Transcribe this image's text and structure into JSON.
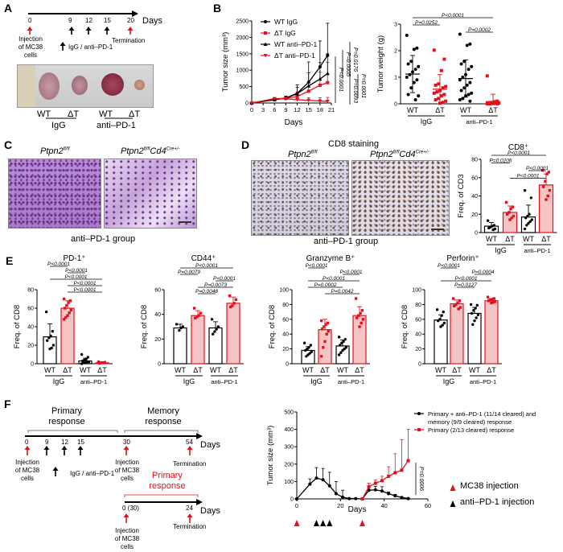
{
  "panel_labels": [
    "A",
    "B",
    "C",
    "D",
    "E",
    "F"
  ],
  "colors": {
    "wt": "#000000",
    "dt": "#e3111b",
    "dt_fill": "#f5c4c4"
  },
  "a": {
    "days": [
      "0",
      "9",
      "12",
      "15",
      "20"
    ],
    "days_label": "Days",
    "injection": "Injection\nof MC38\ncells",
    "termination": "Termination",
    "treatment": "IgG / anti–PD-1",
    "photo_labels": [
      "WT",
      "ΔT",
      "WT",
      "ΔT"
    ],
    "groups": [
      "IgG",
      "anti–PD-1"
    ]
  },
  "c": {
    "title1": {
      "base": "Ptpn2",
      "sup": "fl/fl"
    },
    "title2": {
      "base": "Ptpn2",
      "sup": "fl/fl",
      "base2": "Cd4",
      "sup2": "Cre+/-"
    },
    "caption": "anti–PD-1 group"
  },
  "d": {
    "heading": "CD8 staining",
    "title1": {
      "base": "Ptpn2",
      "sup": "fl/fl"
    },
    "title2": {
      "base": "Ptpn2",
      "sup": "fl/fl",
      "base2": "Cd4",
      "sup2": "Cre+/-"
    },
    "caption": "anti–PD-1 group"
  },
  "f": {
    "primary_response": "Primary\nresponse",
    "memory_response": "Memory\nresponse",
    "days": [
      "0",
      "9",
      "12",
      "15",
      "30",
      "54"
    ],
    "days2": [
      "0 (30)",
      "24"
    ],
    "days_label": "Days",
    "injection": "Injection\nof MC38\ncells",
    "termination": "Termination",
    "treatment": "IgG / anti–PD-1",
    "primary_response_red": "Primary\nresponse",
    "legend_red": "MC38 injection",
    "legend_black": "anti–PD-1 injection"
  },
  "chart_data": [
    {
      "id": "B_growth",
      "type": "line",
      "xlabel": "Days",
      "ylabel": "Tumor size (mm³)",
      "xlim": [
        0,
        21
      ],
      "ylim": [
        0,
        2500
      ],
      "xticks": [
        0,
        3,
        6,
        9,
        12,
        15,
        18,
        21
      ],
      "yticks": [
        0,
        500,
        1000,
        1500,
        2000,
        2500
      ],
      "legend": "top-left",
      "series": [
        {
          "name": "WT IgG",
          "color": "#000000",
          "marker": "circle",
          "x": [
            0,
            6,
            9,
            12,
            15,
            18,
            20
          ],
          "values": [
            0,
            100,
            150,
            300,
            630,
            1100,
            1450
          ],
          "sd": [
            0,
            40,
            60,
            250,
            620,
            790,
            980
          ]
        },
        {
          "name": "ΔT IgG",
          "color": "#e3111b",
          "marker": "square",
          "x": [
            0,
            6,
            9,
            12,
            15,
            18,
            20
          ],
          "values": [
            0,
            130,
            140,
            200,
            360,
            540,
            620
          ],
          "sd": [
            0,
            30,
            50,
            120,
            250,
            400,
            620
          ]
        },
        {
          "name": "WT anti–PD-1",
          "color": "#000000",
          "marker": "triangle",
          "x": [
            0,
            6,
            9,
            12,
            15,
            18,
            20
          ],
          "values": [
            0,
            100,
            150,
            280,
            520,
            730,
            900
          ],
          "sd": [
            0,
            40,
            60,
            200,
            400,
            500,
            600
          ]
        },
        {
          "name": "ΔT anti–PD-1",
          "color": "#e3111b",
          "marker": "down-triangle",
          "x": [
            0,
            6,
            9,
            12,
            15,
            18,
            20
          ],
          "values": [
            0,
            130,
            130,
            100,
            80,
            60,
            50
          ],
          "sd": [
            0,
            30,
            40,
            60,
            80,
            100,
            120
          ]
        }
      ],
      "pvalues": [
        "P=0.0176",
        "P=0.0005",
        "P<0.0001",
        "P=0.0093",
        "P=0.0001"
      ]
    },
    {
      "id": "B_weight",
      "type": "scatter",
      "ylabel": "Tumor weight (g)",
      "ylim": [
        0,
        3
      ],
      "yticks": [
        0,
        1,
        2,
        3
      ],
      "categories": [
        "WT",
        "ΔT",
        "WT",
        "ΔT"
      ],
      "groups": [
        "IgG",
        "anti–PD-1"
      ],
      "means": [
        1.12,
        0.55,
        0.95,
        0.08
      ],
      "sd": [
        0.7,
        0.55,
        0.7,
        0.28
      ],
      "points": [
        [
          2.58,
          2.1,
          2.05,
          1.6,
          1.5,
          1.4,
          1.3,
          1.2,
          1.1,
          1.0,
          0.9,
          0.8,
          0.6,
          0.35,
          0.3,
          0.15
        ],
        [
          2.02,
          1.68,
          1.25,
          0.75,
          0.7,
          0.65,
          0.6,
          0.5,
          0.45,
          0.4,
          0.35,
          0.3,
          0.2,
          0.15,
          0.1,
          0.05,
          0.02
        ],
        [
          2.62,
          2.25,
          2.2,
          1.6,
          1.5,
          1.4,
          1.3,
          1.1,
          1.0,
          0.9,
          0.8,
          0.7,
          0.6,
          0.5,
          0.4,
          0.35,
          0.3,
          0.2,
          0.15,
          0.1
        ],
        [
          1.05,
          0.1,
          0.08,
          0.05,
          0.04,
          0.03,
          0.02,
          0.01,
          0,
          0,
          0
        ]
      ],
      "brackets": [
        {
          "text": "P<0.0001",
          "pair": [
            0,
            3
          ]
        },
        {
          "text": "P=0.0252",
          "pair": [
            0,
            1
          ]
        },
        {
          "text": "P=0.0002",
          "pair": [
            2,
            3
          ]
        }
      ]
    },
    {
      "id": "D_cd8",
      "type": "bar",
      "title": "CD8⁺",
      "ylabel": "Freq. of CD3",
      "ylim": [
        0,
        80
      ],
      "yticks": [
        0,
        20,
        40,
        60,
        80
      ],
      "categories": [
        "WT",
        "ΔT",
        "WT",
        "ΔT"
      ],
      "groups": [
        "IgG",
        "anti–PD-1"
      ],
      "means": [
        7,
        22,
        17,
        52
      ],
      "sd": [
        4,
        7,
        13,
        12
      ],
      "points": [
        [
          13,
          8,
          7,
          6,
          5,
          4,
          3
        ],
        [
          33,
          28,
          26,
          22,
          20,
          18,
          16,
          14
        ],
        [
          46,
          38,
          20,
          18,
          16,
          14,
          12,
          10,
          8,
          4
        ],
        [
          68,
          66,
          64,
          56,
          50,
          46,
          40,
          36
        ]
      ],
      "brackets": [
        {
          "text": "P<0.0001",
          "pair": [
            0,
            3
          ]
        },
        {
          "text": "P=0.0206",
          "pair": [
            0,
            1
          ]
        },
        {
          "text": "P<0.0001",
          "pair": [
            2,
            3
          ]
        },
        {
          "text": "P<0.0001",
          "pair": [
            1,
            3
          ]
        }
      ]
    },
    {
      "id": "E_pd1",
      "type": "bar",
      "title": "PD-1⁺",
      "ylabel": "Freq. of CD8",
      "ylim": [
        0,
        80
      ],
      "yticks": [
        0,
        20,
        40,
        60,
        80
      ],
      "categories": [
        "WT",
        "ΔT",
        "WT",
        "ΔT"
      ],
      "groups": [
        "IgG",
        "anti–PD-1"
      ],
      "means": [
        29,
        60,
        3,
        1
      ],
      "sd": [
        14,
        8,
        3,
        1
      ],
      "points": [
        [
          56,
          35,
          30,
          28,
          25,
          20,
          17,
          16
        ],
        [
          70,
          68,
          66,
          63,
          60,
          58,
          55,
          52,
          50,
          48
        ],
        [
          10,
          7,
          5,
          4,
          3,
          2,
          2,
          1,
          1,
          0
        ],
        [
          2,
          1.5,
          1,
          1,
          0.5
        ]
      ],
      "brackets": [
        {
          "text": "P<0.0001",
          "pair": [
            0,
            1
          ]
        },
        {
          "text": "P<0.0001",
          "pair": [
            1,
            2
          ]
        },
        {
          "text": "P<0.0001",
          "pair": [
            0,
            3
          ]
        },
        {
          "text": "P<0.0001",
          "pair": [
            1,
            3
          ]
        },
        {
          "text": "P<0.0001",
          "pair": [
            1,
            3
          ]
        }
      ]
    },
    {
      "id": "E_cd44",
      "type": "bar",
      "title": "CD44⁺",
      "ylabel": "Freq. of CD8",
      "ylim": [
        0,
        60
      ],
      "yticks": [
        0,
        20,
        40,
        60
      ],
      "categories": [
        "WT",
        "ΔT",
        "WT",
        "ΔT"
      ],
      "groups": [
        "IgG",
        "anti–PD-1"
      ],
      "means": [
        29,
        39,
        29,
        49
      ],
      "sd": [
        3,
        4,
        5,
        5
      ],
      "points": [
        [
          32,
          30,
          29,
          27
        ],
        [
          45,
          41,
          39,
          38,
          37
        ],
        [
          36,
          30,
          28,
          26,
          24
        ],
        [
          55,
          52,
          49,
          47,
          46
        ]
      ],
      "brackets": [
        {
          "text": "P<0.0001",
          "pair": [
            0,
            3
          ]
        },
        {
          "text": "P=0.0079",
          "pair": [
            0,
            1
          ]
        },
        {
          "text": "P<0.0001",
          "pair": [
            2,
            3
          ]
        },
        {
          "text": "P=0.0073",
          "pair": [
            1,
            3
          ]
        },
        {
          "text": "P=0.0048",
          "pair": [
            1,
            2
          ]
        }
      ]
    },
    {
      "id": "E_gzmb",
      "type": "bar",
      "title": "Granzyme B⁺",
      "ylabel": "Freq. of CD8",
      "ylim": [
        0,
        100
      ],
      "yticks": [
        0,
        20,
        40,
        60,
        80,
        100
      ],
      "categories": [
        "WT",
        "ΔT",
        "WT",
        "ΔT"
      ],
      "groups": [
        "IgG",
        "anti–PD-1"
      ],
      "means": [
        18,
        46,
        24,
        65
      ],
      "sd": [
        5,
        14,
        8,
        12
      ],
      "points": [
        [
          28,
          25,
          22,
          20,
          18,
          16,
          14,
          12,
          10
        ],
        [
          58,
          55,
          53,
          50,
          47,
          44,
          40,
          30,
          22,
          10
        ],
        [
          36,
          33,
          30,
          28,
          25,
          22,
          20,
          18,
          15,
          12
        ],
        [
          88,
          72,
          68,
          65,
          62,
          60,
          55,
          50
        ]
      ],
      "brackets": [
        {
          "text": "P<0.0001",
          "pair": [
            0,
            1
          ]
        },
        {
          "text": "P<0.0001",
          "pair": [
            2,
            3
          ]
        },
        {
          "text": "P<0.0001",
          "pair": [
            0,
            3
          ]
        },
        {
          "text": "P=0.0002",
          "pair": [
            0,
            2
          ]
        },
        {
          "text": "P=0.0042",
          "pair": [
            1,
            3
          ]
        }
      ]
    },
    {
      "id": "E_perforin",
      "type": "bar",
      "title": "Perforin⁺",
      "ylabel": "Freq. of CD8",
      "ylim": [
        0,
        100
      ],
      "yticks": [
        0,
        20,
        40,
        60,
        80,
        100
      ],
      "categories": [
        "WT",
        "ΔT",
        "WT",
        "ΔT"
      ],
      "groups": [
        "IgG",
        "anti–PD-1"
      ],
      "means": [
        59,
        81,
        68,
        85
      ],
      "sd": [
        7,
        5,
        8,
        3
      ],
      "points": [
        [
          73,
          70,
          65,
          60,
          58,
          55,
          52,
          50
        ],
        [
          88,
          85,
          82,
          80,
          78,
          76,
          74
        ],
        [
          80,
          79,
          75,
          72,
          68,
          66,
          62,
          58,
          53
        ],
        [
          90,
          88,
          87,
          86,
          85,
          84,
          83,
          82
        ]
      ],
      "brackets": [
        {
          "text": "P<0.0001",
          "pair": [
            0,
            1
          ]
        },
        {
          "text": "P=0.0004",
          "pair": [
            2,
            3
          ]
        },
        {
          "text": "P<0.0001",
          "pair": [
            0,
            3
          ]
        },
        {
          "text": "P=0.0127",
          "pair": [
            1,
            2
          ]
        }
      ]
    },
    {
      "id": "F_growth",
      "type": "line",
      "xlabel": "Days",
      "ylabel": "Tumor size (mm³)",
      "xlim": [
        0,
        60
      ],
      "ylim": [
        0,
        500
      ],
      "xticks": [
        0,
        20,
        40,
        60
      ],
      "yticks": [
        0,
        100,
        200,
        300,
        400,
        500
      ],
      "legend": "top-right",
      "series": [
        {
          "name": "Primary + anti–PD-1 (11/14 cleared) and\nmemory (9/9 cleared) response",
          "color": "#000000",
          "marker": "circle",
          "x": [
            0,
            6,
            9,
            12,
            15,
            18,
            21,
            24,
            27,
            30,
            33,
            36,
            39,
            42,
            45,
            48,
            51
          ],
          "values": [
            0,
            85,
            120,
            110,
            75,
            30,
            10,
            2,
            2,
            0,
            50,
            52,
            45,
            30,
            18,
            8,
            2
          ],
          "sd": [
            0,
            30,
            60,
            65,
            78,
            70,
            40,
            0,
            0,
            0,
            20,
            20,
            25,
            10,
            8,
            5,
            2
          ]
        },
        {
          "name": "Primary (2/13 cleared) response",
          "color": "#e3111b",
          "marker": "square",
          "x": [
            30,
            33,
            36,
            39,
            42,
            45,
            48,
            51
          ],
          "values": [
            0,
            70,
            90,
            105,
            130,
            150,
            165,
            220
          ],
          "sd": [
            0,
            20,
            20,
            25,
            55,
            110,
            175,
            180
          ]
        }
      ],
      "pvalues": [
        "P=0.0006"
      ],
      "mc38_injection_days": [
        0,
        30
      ],
      "anti_pd1_injection_days": [
        9,
        12,
        15
      ]
    }
  ]
}
